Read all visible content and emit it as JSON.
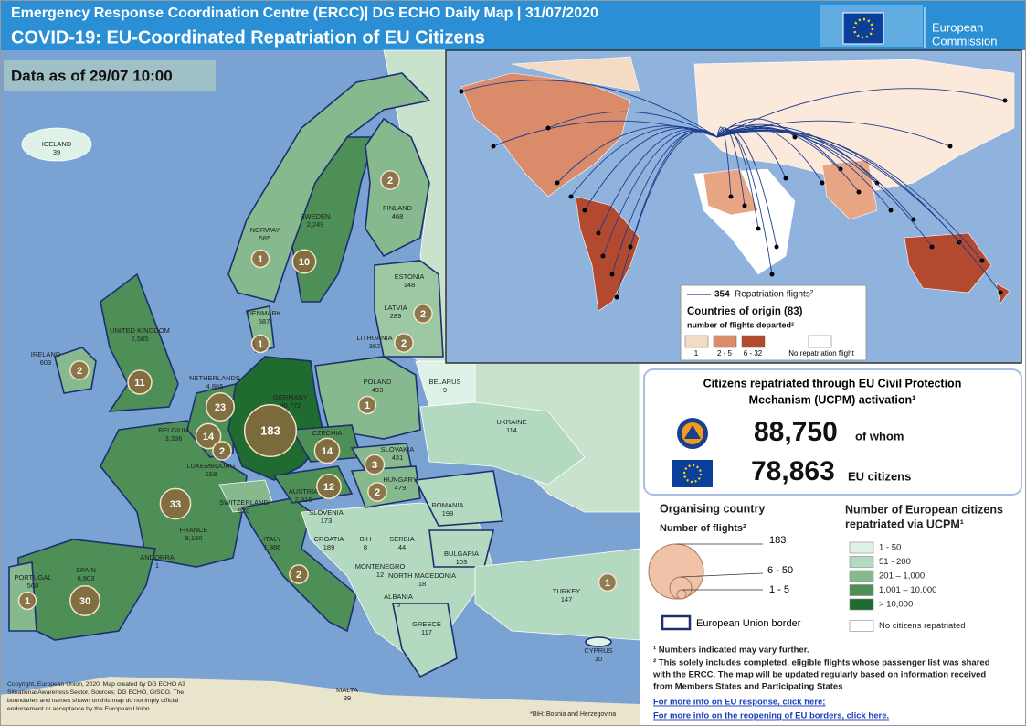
{
  "header": {
    "title": "Emergency Response Coordination  Centre (ERCC)| DG ECHO Daily Map  | 31/07/2020",
    "subtitle": "COVID-19: EU-Coordinated Repatriation of EU Citizens",
    "logo_line1": "European",
    "logo_line2": "Commission"
  },
  "data_as_of": "Data as of 29/07  10:00",
  "countries": [
    {
      "name": "ICELAND",
      "citizens": "39",
      "flights": null
    },
    {
      "name": "NORWAY",
      "citizens": "585",
      "flights": 1
    },
    {
      "name": "SWEDEN",
      "citizens": "2,249",
      "flights": 10
    },
    {
      "name": "FINLAND",
      "citizens": "468",
      "flights": 2
    },
    {
      "name": "ESTONIA",
      "citizens": "148",
      "flights": null
    },
    {
      "name": "LATVIA",
      "citizens": "289",
      "flights": 2
    },
    {
      "name": "LITHUANIA",
      "citizens": "382",
      "flights": 2
    },
    {
      "name": "DENMARK",
      "citizens": "587",
      "flights": 1
    },
    {
      "name": "UNITED KINGDOM",
      "citizens": "2,585",
      "flights": 11
    },
    {
      "name": "IRELAND",
      "citizens": "603",
      "flights": 2
    },
    {
      "name": "NETHERLANDS",
      "citizens": "4,865",
      "flights": 23
    },
    {
      "name": "BELGIUM",
      "citizens": "3,336",
      "flights": 14
    },
    {
      "name": "LUXEMBOURG",
      "citizens": "158",
      "flights": 2
    },
    {
      "name": "GERMANY",
      "citizens": "40,772",
      "flights": 183
    },
    {
      "name": "POLAND",
      "citizens": "493",
      "flights": 1
    },
    {
      "name": "BELARUS",
      "citizens": "9",
      "flights": null
    },
    {
      "name": "UKRAINE",
      "citizens": "114",
      "flights": null
    },
    {
      "name": "CZECHIA",
      "citizens": "2,331",
      "flights": 14
    },
    {
      "name": "SLOVAKIA",
      "citizens": "431",
      "flights": 3
    },
    {
      "name": "AUSTRIA",
      "citizens": "2,916",
      "flights": 12
    },
    {
      "name": "HUNGARY",
      "citizens": "479",
      "flights": 2
    },
    {
      "name": "SWITZERLAND",
      "citizens": "970",
      "flights": null
    },
    {
      "name": "FRANCE",
      "citizens": "8,180",
      "flights": 33
    },
    {
      "name": "SLOVENIA",
      "citizens": "173",
      "flights": null
    },
    {
      "name": "CROATIA",
      "citizens": "189",
      "flights": null
    },
    {
      "name": "BIH",
      "citizens": "8",
      "flights": null
    },
    {
      "name": "SERBIA",
      "citizens": "44",
      "flights": null
    },
    {
      "name": "ROMANIA",
      "citizens": "199",
      "flights": null
    },
    {
      "name": "BULGARIA",
      "citizens": "103",
      "flights": null
    },
    {
      "name": "MONTENEGRO",
      "citizens": "12",
      "flights": null
    },
    {
      "name": "NORTH MACEDONIA",
      "citizens": "18",
      "flights": null
    },
    {
      "name": "ALBANIA",
      "citizens": "6",
      "flights": null
    },
    {
      "name": "ITALY",
      "citizens": "1,886",
      "flights": 2
    },
    {
      "name": "ANDORRA",
      "citizens": "1",
      "flights": null
    },
    {
      "name": "SPAIN",
      "citizens": "6,903",
      "flights": 30
    },
    {
      "name": "PORTUGAL",
      "citizens": "560",
      "flights": 1
    },
    {
      "name": "GREECE",
      "citizens": "117",
      "flights": null
    },
    {
      "name": "TURKEY",
      "citizens": "147",
      "flights": 1
    },
    {
      "name": "CYPRUS",
      "citizens": "10",
      "flights": null
    },
    {
      "name": "MALTA",
      "citizens": "39",
      "flights": null
    }
  ],
  "world_legend": {
    "flights_total": "354",
    "flights_label": "Repatriation flights²",
    "title": "Countries of origin (83)",
    "subtitle": "number of flights departed²",
    "classes": [
      "1",
      "2 - 5",
      "6 - 32",
      "No repatriation  flight"
    ]
  },
  "stats": {
    "title_line1": "Citizens repatriated through EU Civil Protection",
    "title_line2": "Mechanism (UCPM) activation¹",
    "total": "88,750",
    "total_suffix": "of whom",
    "eu": "78,863",
    "eu_suffix": "EU citizens"
  },
  "flights_legend": {
    "title": "Organising country",
    "subtitle": "Number of flights²",
    "sizes": [
      "183",
      "6 - 50",
      "1 - 5"
    ],
    "border": "European Union border"
  },
  "citizens_legend": {
    "title_line1": "Number of European citizens",
    "title_line2": "repatriated via UCPM¹",
    "classes": [
      "1 - 50",
      "51 - 200",
      "201 – 1,000",
      "1,001 – 10,000",
      "> 10,000",
      "No citizens repatriated"
    ]
  },
  "notes": {
    "note1": "¹ Numbers indicated may vary further.",
    "note2_line1": "² This solely includes completed, eligible flights whose passenger list was shared",
    "note2_line2": "with the ERCC. The map will be updated regularly based on information received",
    "note2_line3": "from Members States and Participating States",
    "link1": "For more info on EU response, click here;",
    "link2": "For more info on the reopening of EU borders, click here."
  },
  "copyright": {
    "line1": "Copyright, European Union, 2020. Map created by DG ECHO A3",
    "line2": "Situational Awareness Sector.  Sources: DG ECHO, GISCO. The",
    "line3": "boundaries and names shown on this map do not imply official",
    "line4": "endorsement or acceptance  by the European Union."
  },
  "bih_note": "*BiH: Bosnia and Herzegovina"
}
